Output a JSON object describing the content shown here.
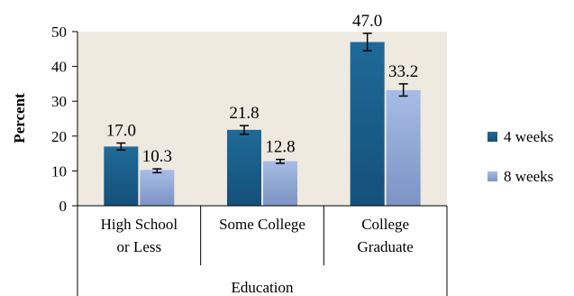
{
  "chart_data": {
    "type": "bar",
    "categories": [
      "High School or Less",
      "Some College",
      "College Graduate"
    ],
    "category_lines": [
      [
        "High School",
        "or Less"
      ],
      [
        "Some College"
      ],
      [
        "College",
        "Graduate"
      ]
    ],
    "series": [
      {
        "name": "4 weeks",
        "values": [
          17.0,
          21.8,
          47.0
        ],
        "errors": [
          [
            16.0,
            18.0
          ],
          [
            20.5,
            23.0
          ],
          [
            44.5,
            49.5
          ]
        ],
        "labels": [
          "17.0",
          "21.8",
          "47.0"
        ],
        "color": "#1f5f8b"
      },
      {
        "name": "8 weeks",
        "values": [
          10.3,
          12.8,
          33.2
        ],
        "errors": [
          [
            9.5,
            10.6
          ],
          [
            12.2,
            13.3
          ],
          [
            31.5,
            35.0
          ]
        ],
        "labels": [
          "10.3",
          "12.8",
          "33.2"
        ],
        "color": "#8fa6d4"
      }
    ],
    "xlabel": "Education",
    "ylabel": "Percent",
    "ylim": [
      0,
      50
    ],
    "yticks": [
      0,
      10,
      20,
      30,
      40,
      50
    ],
    "ytick_labels": [
      "0",
      "10",
      "20",
      "30",
      "40",
      "50"
    ],
    "plot_background": "#eeeae0",
    "grid": false,
    "legend_position": "right"
  }
}
